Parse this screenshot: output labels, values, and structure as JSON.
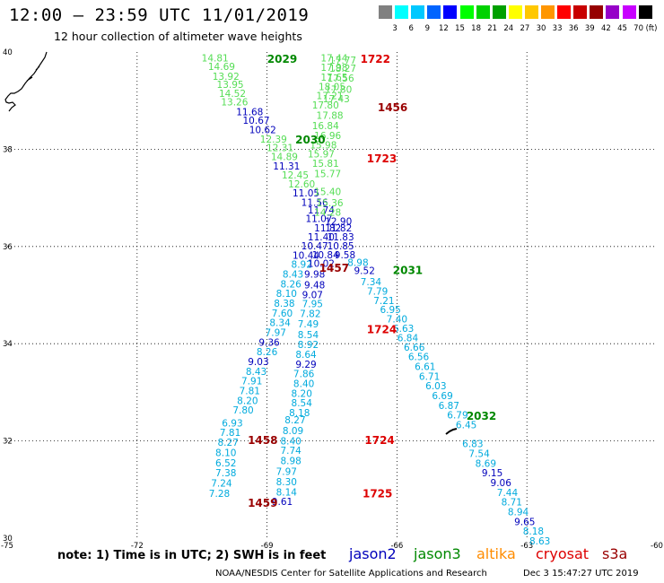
{
  "header": {
    "title": "12:00 – 23:59 UTC 11/01/2019",
    "subtitle": "12 hour collection of altimeter wave heights"
  },
  "colorbar": {
    "unit": "(ft)",
    "colors": [
      "#808080",
      "#00ffff",
      "#00c8ff",
      "#0064ff",
      "#0000ff",
      "#00ff00",
      "#00d200",
      "#00a000",
      "#ffff00",
      "#ffc800",
      "#ff9600",
      "#ff0000",
      "#c80000",
      "#960000",
      "#9600c8",
      "#c800ff",
      "#000000"
    ],
    "labels": [
      "3",
      "6",
      "9",
      "12",
      "15",
      "18",
      "21",
      "24",
      "27",
      "30",
      "33",
      "36",
      "39",
      "42",
      "45",
      "70"
    ]
  },
  "axes": {
    "lon_labels": [
      "-75",
      "-72",
      "-69",
      "-66",
      "-63",
      "-60"
    ],
    "lat_labels": [
      "40",
      "38",
      "36",
      "34",
      "32",
      "30"
    ],
    "lon_range": [
      -75,
      -60
    ],
    "lat_range": [
      30,
      40
    ],
    "grid": "dotted"
  },
  "colors": {
    "jason2": "#0000bb",
    "jason3": "#008800",
    "jason3_light": "#55dd55",
    "altika": "#ff8c00",
    "cryosat": "#dd0000",
    "s3a": "#990000",
    "cyan": "#00aadd"
  },
  "tracks": [
    {
      "name": "track-left-a",
      "points": [
        {
          "v": "14.81",
          "lon": -70.2,
          "lat": 39.81,
          "c": "jason3_light"
        },
        {
          "v": "14.69",
          "lon": -70.05,
          "lat": 39.63,
          "c": "jason3_light"
        },
        {
          "v": "13.92",
          "lon": -69.95,
          "lat": 39.43,
          "c": "jason3_light"
        },
        {
          "v": "13.95",
          "lon": -69.85,
          "lat": 39.26,
          "c": "jason3_light"
        },
        {
          "v": "14.52",
          "lon": -69.8,
          "lat": 39.08,
          "c": "jason3_light"
        },
        {
          "v": "13.26",
          "lon": -69.75,
          "lat": 38.9,
          "c": "jason3_light"
        },
        {
          "v": "11.68",
          "lon": -69.4,
          "lat": 38.7,
          "c": "jason2"
        },
        {
          "v": "10.67",
          "lon": -69.25,
          "lat": 38.52,
          "c": "jason2"
        },
        {
          "v": "10.62",
          "lon": -69.1,
          "lat": 38.33,
          "c": "jason2"
        },
        {
          "v": "12.39",
          "lon": -68.85,
          "lat": 38.14,
          "c": "jason3_light"
        },
        {
          "v": "12.31",
          "lon": -68.7,
          "lat": 37.96,
          "c": "jason3_light"
        },
        {
          "v": "14.89",
          "lon": -68.6,
          "lat": 37.78,
          "c": "jason3_light"
        },
        {
          "v": "11.31",
          "lon": -68.55,
          "lat": 37.58,
          "c": "jason2"
        },
        {
          "v": "12.45",
          "lon": -68.35,
          "lat": 37.4,
          "c": "jason3_light"
        },
        {
          "v": "12.60",
          "lon": -68.2,
          "lat": 37.21,
          "c": "jason3_light"
        },
        {
          "v": "11.05",
          "lon": -68.1,
          "lat": 37.03,
          "c": "jason2"
        },
        {
          "v": "11.56",
          "lon": -67.9,
          "lat": 36.84,
          "c": "jason2"
        },
        {
          "v": "11.74",
          "lon": -67.75,
          "lat": 36.68,
          "c": "jason2"
        },
        {
          "v": "11.07",
          "lon": -67.8,
          "lat": 36.5,
          "c": "jason2"
        },
        {
          "v": "11.82",
          "lon": -67.6,
          "lat": 36.31,
          "c": "jason2"
        },
        {
          "v": "11.40",
          "lon": -67.75,
          "lat": 36.13,
          "c": "jason2"
        },
        {
          "v": "10.47",
          "lon": -67.9,
          "lat": 35.94,
          "c": "jason2"
        },
        {
          "v": "10.44",
          "lon": -68.1,
          "lat": 35.75,
          "c": "jason2"
        },
        {
          "v": "8.92",
          "lon": -68.2,
          "lat": 35.56,
          "c": "cyan"
        },
        {
          "v": "8.43",
          "lon": -68.4,
          "lat": 35.36,
          "c": "cyan"
        },
        {
          "v": "8.26",
          "lon": -68.45,
          "lat": 35.16,
          "c": "cyan"
        },
        {
          "v": "8.10",
          "lon": -68.55,
          "lat": 34.96,
          "c": "cyan"
        },
        {
          "v": "8.38",
          "lon": -68.6,
          "lat": 34.76,
          "c": "cyan"
        },
        {
          "v": "7.60",
          "lon": -68.65,
          "lat": 34.56,
          "c": "cyan"
        },
        {
          "v": "8.34",
          "lon": -68.7,
          "lat": 34.36,
          "c": "cyan"
        },
        {
          "v": "7.97",
          "lon": -68.8,
          "lat": 34.16,
          "c": "cyan"
        },
        {
          "v": "9.36",
          "lon": -68.95,
          "lat": 33.96,
          "c": "jason2"
        },
        {
          "v": "8.26",
          "lon": -69.0,
          "lat": 33.76,
          "c": "cyan"
        },
        {
          "v": "9.03",
          "lon": -69.2,
          "lat": 33.56,
          "c": "jason2"
        },
        {
          "v": "8.43",
          "lon": -69.25,
          "lat": 33.36,
          "c": "cyan"
        },
        {
          "v": "7.91",
          "lon": -69.35,
          "lat": 33.16,
          "c": "cyan"
        },
        {
          "v": "7.81",
          "lon": -69.4,
          "lat": 32.96,
          "c": "cyan"
        },
        {
          "v": "8.20",
          "lon": -69.45,
          "lat": 32.76,
          "c": "cyan"
        },
        {
          "v": "7.80",
          "lon": -69.55,
          "lat": 32.56,
          "c": "cyan"
        },
        {
          "v": "6.93",
          "lon": -69.8,
          "lat": 32.3,
          "c": "cyan"
        },
        {
          "v": "7.81",
          "lon": -69.85,
          "lat": 32.1,
          "c": "cyan"
        },
        {
          "v": "8.27",
          "lon": -69.9,
          "lat": 31.9,
          "c": "cyan"
        },
        {
          "v": "8.10",
          "lon": -69.95,
          "lat": 31.69,
          "c": "cyan"
        },
        {
          "v": "6.52",
          "lon": -69.95,
          "lat": 31.48,
          "c": "cyan"
        },
        {
          "v": "7.38",
          "lon": -69.95,
          "lat": 31.27,
          "c": "cyan"
        },
        {
          "v": "7.24",
          "lon": -70.05,
          "lat": 31.06,
          "c": "cyan"
        },
        {
          "v": "7.28",
          "lon": -70.1,
          "lat": 30.85,
          "c": "cyan"
        }
      ]
    },
    {
      "name": "track-right-a",
      "points": [
        {
          "v": "17.44",
          "lon": -67.45,
          "lat": 39.81,
          "c": "jason3_light"
        },
        {
          "v": "17.77",
          "lon": -67.25,
          "lat": 39.76,
          "c": "jason3_light"
        },
        {
          "v": "17.98",
          "lon": -67.45,
          "lat": 39.61,
          "c": "jason3_light"
        },
        {
          "v": "18.27",
          "lon": -67.25,
          "lat": 39.59,
          "c": "jason3_light"
        },
        {
          "v": "17.65",
          "lon": -67.45,
          "lat": 39.41,
          "c": "jason3_light"
        },
        {
          "v": "17.56",
          "lon": -67.3,
          "lat": 39.39,
          "c": "jason3_light"
        },
        {
          "v": "18.05",
          "lon": -67.5,
          "lat": 39.22,
          "c": "jason3_light"
        },
        {
          "v": "17.80",
          "lon": -67.35,
          "lat": 39.16,
          "c": "jason3_light"
        },
        {
          "v": "17.21",
          "lon": -67.55,
          "lat": 39.03,
          "c": "jason3_light"
        },
        {
          "v": "17.43",
          "lon": -67.4,
          "lat": 38.97,
          "c": "jason3_light"
        },
        {
          "v": "17.80",
          "lon": -67.65,
          "lat": 38.84,
          "c": "jason3_light"
        },
        {
          "v": "17.88",
          "lon": -67.55,
          "lat": 38.63,
          "c": "jason3_light"
        },
        {
          "v": "16.84",
          "lon": -67.65,
          "lat": 38.41,
          "c": "jason3_light"
        },
        {
          "v": "16.96",
          "lon": -67.6,
          "lat": 38.21,
          "c": "jason3_light"
        },
        {
          "v": "15.98",
          "lon": -67.7,
          "lat": 38.02,
          "c": "jason3_light"
        },
        {
          "v": "15.97",
          "lon": -67.75,
          "lat": 37.83,
          "c": "jason3_light"
        },
        {
          "v": "15.81",
          "lon": -67.65,
          "lat": 37.64,
          "c": "jason3_light"
        },
        {
          "v": "15.77",
          "lon": -67.6,
          "lat": 37.43,
          "c": "jason3_light"
        },
        {
          "v": "15.40",
          "lon": -67.6,
          "lat": 37.06,
          "c": "jason3_light"
        },
        {
          "v": "15.36",
          "lon": -67.55,
          "lat": 36.83,
          "c": "jason3_light"
        },
        {
          "v": "14.28",
          "lon": -67.6,
          "lat": 36.63,
          "c": "jason3_light"
        },
        {
          "v": "12.90",
          "lon": -67.35,
          "lat": 36.45,
          "c": "jason2"
        },
        {
          "v": "11.82",
          "lon": -67.35,
          "lat": 36.31,
          "c": "jason2"
        },
        {
          "v": "11.83",
          "lon": -67.3,
          "lat": 36.13,
          "c": "jason2"
        },
        {
          "v": "10.85",
          "lon": -67.3,
          "lat": 35.94,
          "c": "jason2"
        },
        {
          "v": "10.84",
          "lon": -67.65,
          "lat": 35.76,
          "c": "jason2"
        },
        {
          "v": "9.58",
          "lon": -67.2,
          "lat": 35.76,
          "c": "jason2"
        },
        {
          "v": "10.02",
          "lon": -67.75,
          "lat": 35.58,
          "c": "jason2"
        },
        {
          "v": "8.98",
          "lon": -66.9,
          "lat": 35.6,
          "c": "cyan"
        },
        {
          "v": "9.52",
          "lon": -66.75,
          "lat": 35.43,
          "c": "jason2"
        },
        {
          "v": "9.98",
          "lon": -67.9,
          "lat": 35.36,
          "c": "jason2"
        },
        {
          "v": "9.48",
          "lon": -67.9,
          "lat": 35.14,
          "c": "jason2"
        },
        {
          "v": "9.07",
          "lon": -67.95,
          "lat": 34.94,
          "c": "jason2"
        },
        {
          "v": "7.95",
          "lon": -67.95,
          "lat": 34.75,
          "c": "cyan"
        },
        {
          "v": "7.82",
          "lon": -68.0,
          "lat": 34.55,
          "c": "cyan"
        },
        {
          "v": "7.49",
          "lon": -68.05,
          "lat": 34.34,
          "c": "cyan"
        },
        {
          "v": "8.54",
          "lon": -68.05,
          "lat": 34.11,
          "c": "cyan"
        },
        {
          "v": "8.92",
          "lon": -68.05,
          "lat": 33.91,
          "c": "cyan"
        },
        {
          "v": "8.64",
          "lon": -68.1,
          "lat": 33.71,
          "c": "cyan"
        },
        {
          "v": "9.29",
          "lon": -68.1,
          "lat": 33.51,
          "c": "jason2"
        },
        {
          "v": "7.86",
          "lon": -68.15,
          "lat": 33.31,
          "c": "cyan"
        },
        {
          "v": "8.40",
          "lon": -68.15,
          "lat": 33.11,
          "c": "cyan"
        },
        {
          "v": "8.20",
          "lon": -68.2,
          "lat": 32.91,
          "c": "cyan"
        },
        {
          "v": "8.54",
          "lon": -68.2,
          "lat": 32.71,
          "c": "cyan"
        },
        {
          "v": "8.18",
          "lon": -68.25,
          "lat": 32.51,
          "c": "cyan"
        },
        {
          "v": "8.27",
          "lon": -68.35,
          "lat": 32.36,
          "c": "cyan"
        },
        {
          "v": "8.09",
          "lon": -68.4,
          "lat": 32.14,
          "c": "cyan"
        },
        {
          "v": "8.40",
          "lon": -68.45,
          "lat": 31.93,
          "c": "cyan"
        },
        {
          "v": "7.74",
          "lon": -68.45,
          "lat": 31.73,
          "c": "cyan"
        },
        {
          "v": "8.98",
          "lon": -68.45,
          "lat": 31.52,
          "c": "cyan"
        },
        {
          "v": "7.97",
          "lon": -68.55,
          "lat": 31.3,
          "c": "cyan"
        },
        {
          "v": "8.30",
          "lon": -68.55,
          "lat": 31.09,
          "c": "cyan"
        },
        {
          "v": "8.14",
          "lon": -68.55,
          "lat": 30.88,
          "c": "cyan"
        },
        {
          "v": "9.61",
          "lon": -68.65,
          "lat": 30.68,
          "c": "jason2"
        }
      ]
    },
    {
      "name": "track-right-b",
      "points": [
        {
          "v": "7.34",
          "lon": -66.6,
          "lat": 35.2,
          "c": "cyan"
        },
        {
          "v": "7.79",
          "lon": -66.45,
          "lat": 35.01,
          "c": "cyan"
        },
        {
          "v": "7.21",
          "lon": -66.3,
          "lat": 34.82,
          "c": "cyan"
        },
        {
          "v": "6.95",
          "lon": -66.15,
          "lat": 34.63,
          "c": "cyan"
        },
        {
          "v": "7.40",
          "lon": -66.0,
          "lat": 34.44,
          "c": "cyan"
        },
        {
          "v": "6.63",
          "lon": -65.85,
          "lat": 34.24,
          "c": "cyan"
        },
        {
          "v": "6.84",
          "lon": -65.75,
          "lat": 34.05,
          "c": "cyan"
        },
        {
          "v": "6.66",
          "lon": -65.6,
          "lat": 33.86,
          "c": "cyan"
        },
        {
          "v": "6.56",
          "lon": -65.5,
          "lat": 33.66,
          "c": "cyan"
        },
        {
          "v": "6.61",
          "lon": -65.35,
          "lat": 33.46,
          "c": "cyan"
        },
        {
          "v": "6.71",
          "lon": -65.25,
          "lat": 33.26,
          "c": "cyan"
        },
        {
          "v": "6.03",
          "lon": -65.1,
          "lat": 33.06,
          "c": "cyan"
        },
        {
          "v": "6.69",
          "lon": -64.95,
          "lat": 32.86,
          "c": "cyan"
        },
        {
          "v": "6.87",
          "lon": -64.8,
          "lat": 32.66,
          "c": "cyan"
        },
        {
          "v": "6.79",
          "lon": -64.6,
          "lat": 32.46,
          "c": "cyan"
        },
        {
          "v": "6.45",
          "lon": -64.4,
          "lat": 32.26,
          "c": "cyan"
        },
        {
          "v": "6.83",
          "lon": -64.25,
          "lat": 31.87,
          "c": "cyan"
        },
        {
          "v": "7.54",
          "lon": -64.1,
          "lat": 31.67,
          "c": "cyan"
        },
        {
          "v": "8.69",
          "lon": -63.95,
          "lat": 31.47,
          "c": "cyan"
        },
        {
          "v": "9.15",
          "lon": -63.8,
          "lat": 31.27,
          "c": "jason2"
        },
        {
          "v": "9.06",
          "lon": -63.6,
          "lat": 31.07,
          "c": "jason2"
        },
        {
          "v": "7.44",
          "lon": -63.45,
          "lat": 30.87,
          "c": "cyan"
        },
        {
          "v": "8.71",
          "lon": -63.35,
          "lat": 30.67,
          "c": "cyan"
        },
        {
          "v": "8.94",
          "lon": -63.2,
          "lat": 30.47,
          "c": "cyan"
        },
        {
          "v": "9.65",
          "lon": -63.05,
          "lat": 30.27,
          "c": "jason2"
        },
        {
          "v": "8.18",
          "lon": -62.85,
          "lat": 30.07,
          "c": "cyan"
        },
        {
          "v": "8.63",
          "lon": -62.7,
          "lat": 29.87,
          "c": "cyan"
        }
      ]
    }
  ],
  "pass_labels": [
    {
      "v": "2029",
      "lon": -68.65,
      "lat": 39.78,
      "c": "jason3"
    },
    {
      "v": "1722",
      "lon": -66.5,
      "lat": 39.78,
      "c": "cryosat"
    },
    {
      "v": "1456",
      "lon": -66.1,
      "lat": 38.78,
      "c": "s3a"
    },
    {
      "v": "2030",
      "lon": -68.0,
      "lat": 38.12,
      "c": "jason3"
    },
    {
      "v": "1723",
      "lon": -66.35,
      "lat": 37.73,
      "c": "cryosat"
    },
    {
      "v": "1457",
      "lon": -67.45,
      "lat": 35.48,
      "c": "s3a"
    },
    {
      "v": "2031",
      "lon": -65.75,
      "lat": 35.43,
      "c": "jason3"
    },
    {
      "v": "1724",
      "lon": -66.35,
      "lat": 34.22,
      "c": "cryosat"
    },
    {
      "v": "2032",
      "lon": -64.05,
      "lat": 32.44,
      "c": "jason3"
    },
    {
      "v": "1458",
      "lon": -69.1,
      "lat": 31.94,
      "c": "s3a"
    },
    {
      "v": "1724",
      "lon": -66.4,
      "lat": 31.94,
      "c": "cryosat"
    },
    {
      "v": "1725",
      "lon": -66.45,
      "lat": 30.84,
      "c": "cryosat"
    },
    {
      "v": "1459",
      "lon": -69.1,
      "lat": 30.65,
      "c": "s3a"
    }
  ],
  "note": "note: 1) Time is in UTC; 2) SWH is in feet",
  "legend": [
    {
      "label": "jason2",
      "c": "jason2"
    },
    {
      "label": "jason3",
      "c": "jason3"
    },
    {
      "label": "altika",
      "c": "altika"
    },
    {
      "label": "cryosat",
      "c": "cryosat"
    },
    {
      "label": "s3a",
      "c": "s3a"
    }
  ],
  "footer": {
    "credit": "NOAA/NESDIS Center for Satellite Applications and Research",
    "timestamp": "Dec  3 15:47:27 UTC 2019"
  }
}
